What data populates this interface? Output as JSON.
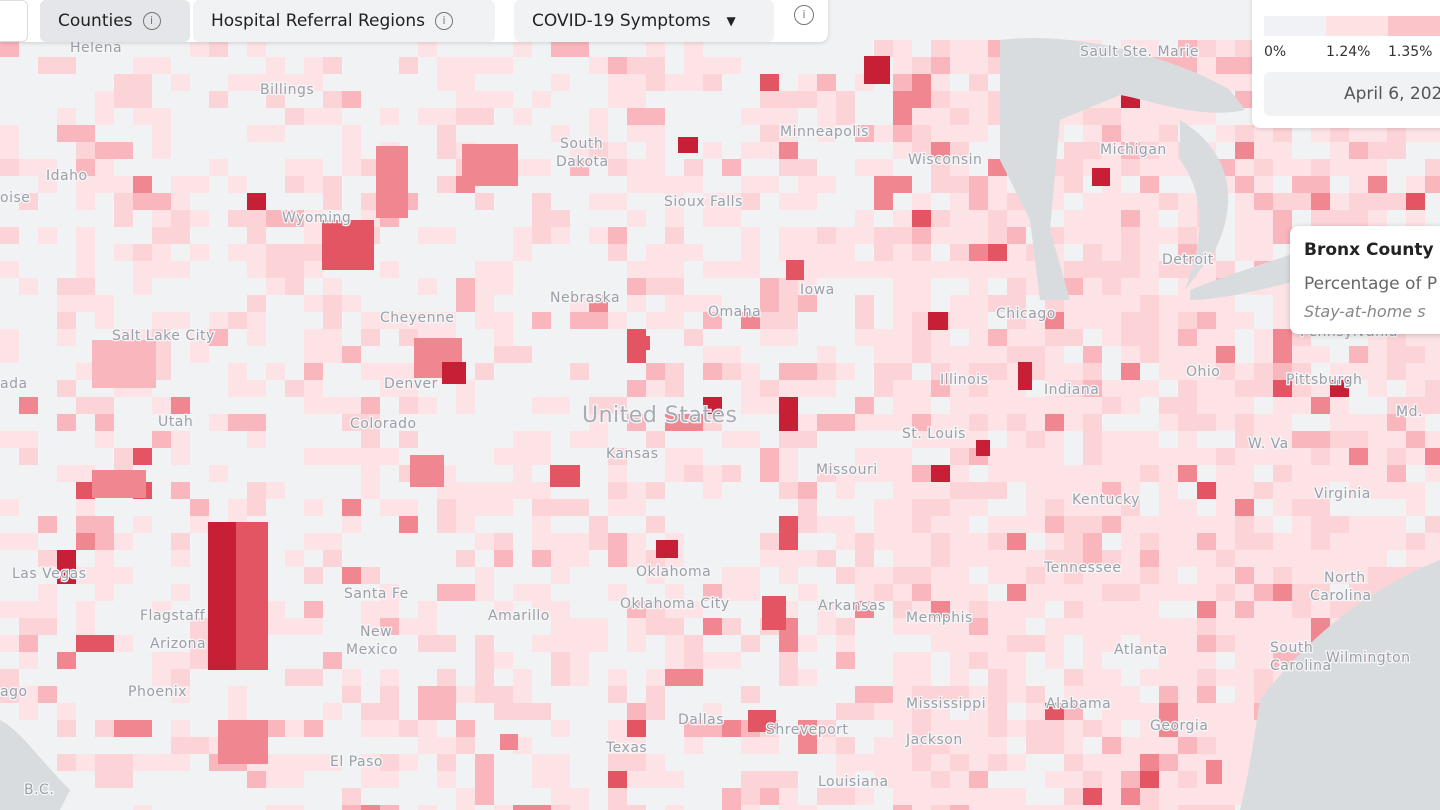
{
  "toolbar": {
    "buttons": [
      "Counties",
      "Hospital Referral Regions"
    ],
    "dropdown": "COVID-19 Symptoms"
  },
  "legend": {
    "labels": [
      "0%",
      "1.24%",
      "1.35%"
    ],
    "date": "April 6, 202"
  },
  "tooltip": {
    "title": "Bronx County",
    "metric": "Percentage of P",
    "note": "Stay-at-home s"
  },
  "map_labels": [
    "Helena",
    "Billings",
    "Idaho",
    "oise",
    "South",
    "Dakota",
    "Sioux Falls",
    "Minneapolis",
    "Wisconsin",
    "Michigan",
    "Sault Ste. Marie",
    "Detroit",
    "Wyoming",
    "Salt Lake City",
    "Nebraska",
    "Omaha",
    "Iowa",
    "Chicago",
    "Cheyenne",
    "Denver",
    "Utah",
    "United States",
    "Colorado",
    "Kansas",
    "Illinois",
    "Indiana",
    "St. Louis",
    "Missouri",
    "Pittsburgh",
    "Pennsylvania",
    "Md.",
    "W. Va",
    "Virginia",
    "Kentucky",
    "Tennessee",
    "Las Vegas",
    "Flagstaff",
    "Arizona",
    "Santa Fe",
    "New",
    "Mexico",
    "Oklahoma",
    "Oklahoma City",
    "Amarillo",
    "Arkansas",
    "Memphis",
    "North",
    "Carolina",
    "South",
    "Carolina",
    "Wilmington",
    "Atlanta",
    "Alabama",
    "Mississippi",
    "Georgia",
    "Phoenix",
    "Jackson",
    "Dallas",
    "Shreveport",
    "Texas",
    "El Paso",
    "Louisiana",
    "B.C.",
    "ago",
    "ada",
    "Ohio"
  ]
}
